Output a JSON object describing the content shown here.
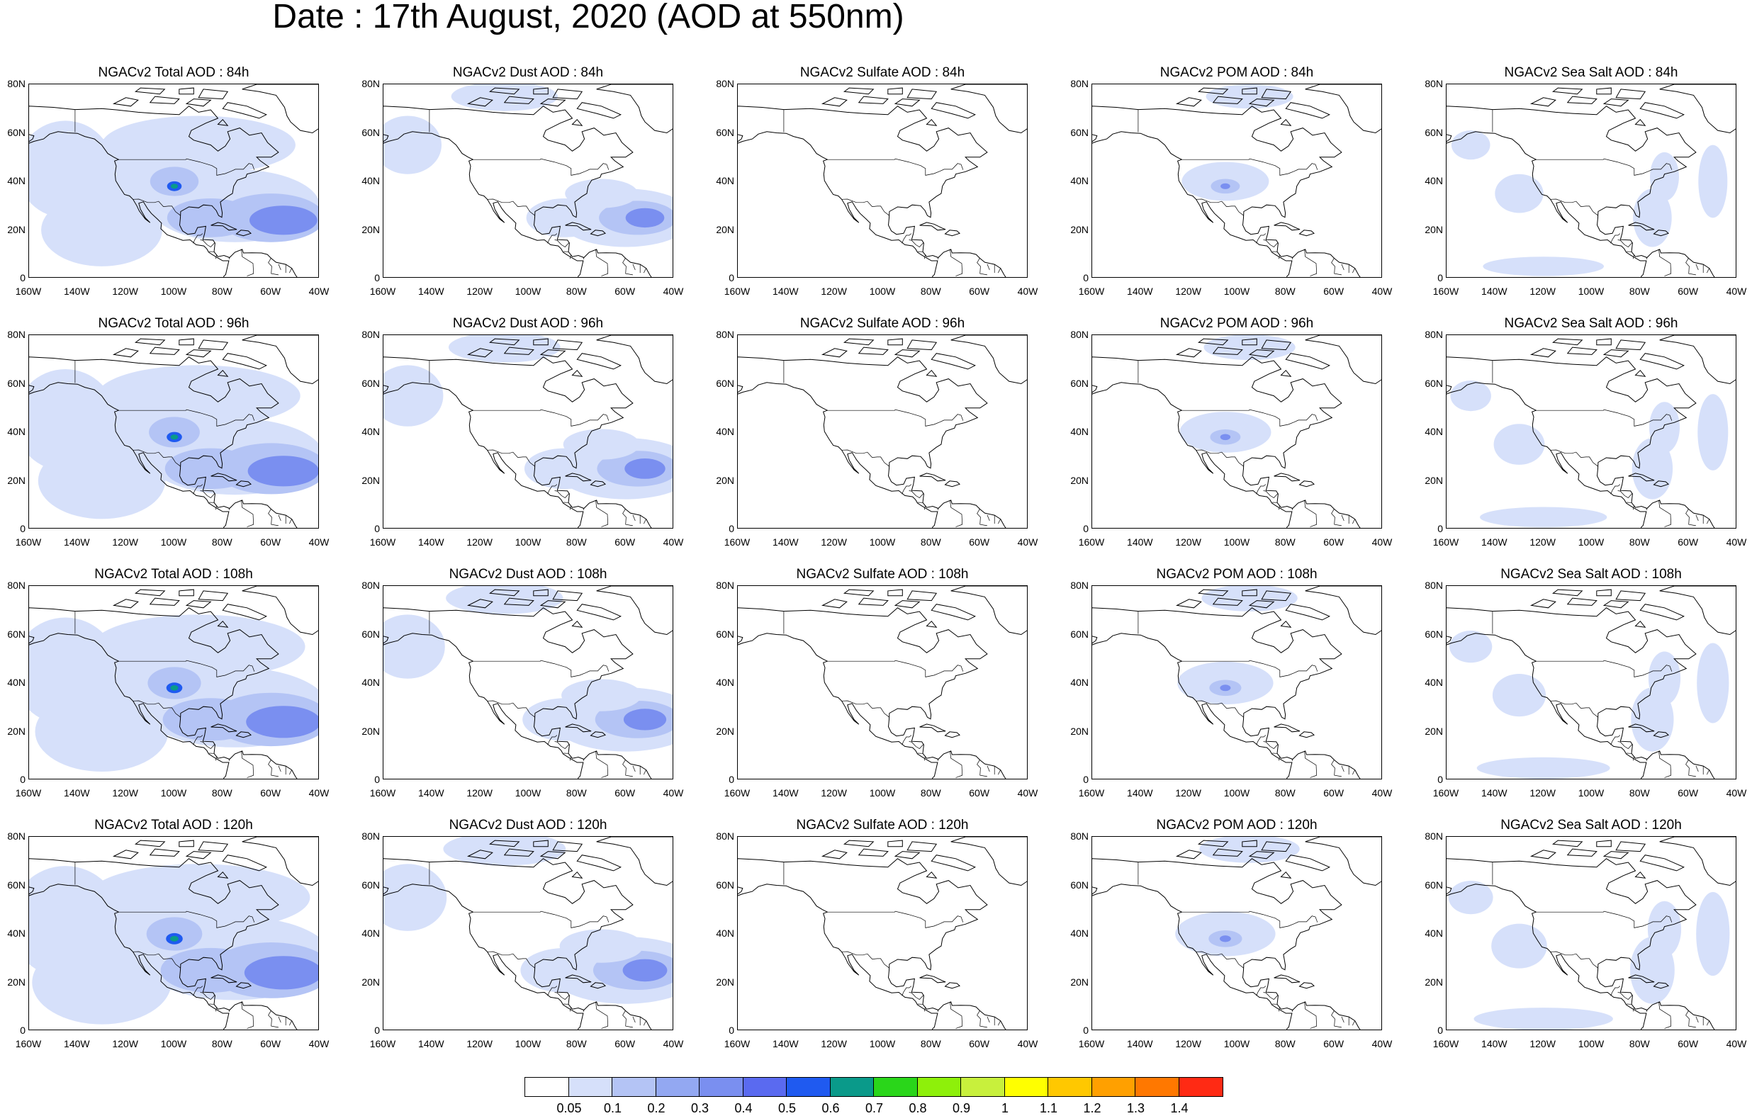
{
  "title": "Date : 17th August, 2020 (AOD at 550nm)",
  "lat_labels": [
    "80N",
    "60N",
    "40N",
    "20N",
    "0"
  ],
  "lon_labels": [
    "160W",
    "140W",
    "120W",
    "100W",
    "80W",
    "60W",
    "40W"
  ],
  "panels": [
    [
      {
        "title": "NGACv2 Total AOD : 84h",
        "species": "total"
      },
      {
        "title": "NGACv2 Dust AOD : 84h",
        "species": "dust"
      },
      {
        "title": "NGACv2 Sulfate AOD : 84h",
        "species": "sulfate"
      },
      {
        "title": "NGACv2 POM AOD : 84h",
        "species": "pom"
      },
      {
        "title": "NGACv2 Sea Salt AOD : 84h",
        "species": "seasalt"
      }
    ],
    [
      {
        "title": "NGACv2 Total AOD : 96h",
        "species": "total"
      },
      {
        "title": "NGACv2 Dust AOD : 96h",
        "species": "dust"
      },
      {
        "title": "NGACv2 Sulfate AOD : 96h",
        "species": "sulfate"
      },
      {
        "title": "NGACv2 POM AOD : 96h",
        "species": "pom"
      },
      {
        "title": "NGACv2 Sea Salt AOD : 96h",
        "species": "seasalt"
      }
    ],
    [
      {
        "title": "NGACv2 Total AOD : 108h",
        "species": "total"
      },
      {
        "title": "NGACv2 Dust AOD : 108h",
        "species": "dust"
      },
      {
        "title": "NGACv2 Sulfate AOD : 108h",
        "species": "sulfate"
      },
      {
        "title": "NGACv2 POM AOD : 108h",
        "species": "pom"
      },
      {
        "title": "NGACv2 Sea Salt AOD : 108h",
        "species": "seasalt"
      }
    ],
    [
      {
        "title": "NGACv2 Total AOD : 120h",
        "species": "total"
      },
      {
        "title": "NGACv2 Dust AOD : 120h",
        "species": "dust"
      },
      {
        "title": "NGACv2 Sulfate AOD : 120h",
        "species": "sulfate"
      },
      {
        "title": "NGACv2 POM AOD : 120h",
        "species": "pom"
      },
      {
        "title": "NGACv2 Sea Salt  AOD : 120h",
        "species": "seasalt"
      }
    ]
  ],
  "colorbar": {
    "labels": [
      "0.05",
      "0.1",
      "0.2",
      "0.3",
      "0.4",
      "0.5",
      "0.6",
      "0.7",
      "0.8",
      "0.9",
      "1",
      "1.1",
      "1.2",
      "1.3",
      "1.4"
    ],
    "colors": [
      "#ffffff",
      "#d6e0fa",
      "#b4c4f5",
      "#93a8f2",
      "#7a8ff0",
      "#5a6af0",
      "#1f5af0",
      "#0a9a8a",
      "#2ad61a",
      "#8ef00a",
      "#c8f03c",
      "#ffff00",
      "#ffc800",
      "#ffa000",
      "#ff7800",
      "#ff2a14"
    ]
  }
}
